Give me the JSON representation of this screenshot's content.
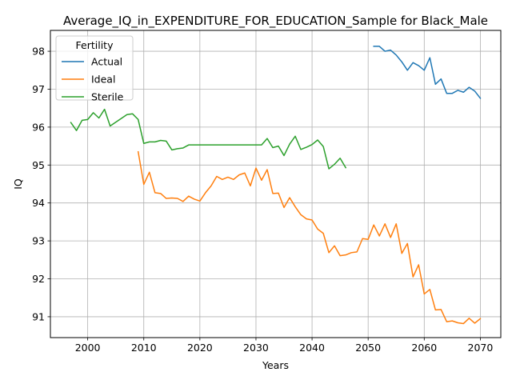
{
  "chart_data": {
    "type": "line",
    "title": "Average_IQ_in_EXPENDITURE_FOR_EDUCATION_Sample for Black_Male",
    "xlabel": "Years",
    "ylabel": "IQ",
    "xlim": [
      1993.35,
      2073.65
    ],
    "ylim": [
      90.45,
      98.55
    ],
    "xticks": [
      2000,
      2010,
      2020,
      2030,
      2040,
      2050,
      2060,
      2070
    ],
    "yticks": [
      91,
      92,
      93,
      94,
      95,
      96,
      97,
      98
    ],
    "grid": true,
    "legend": {
      "title": "Fertility",
      "placement": "top-left"
    },
    "series": [
      {
        "name": "Actual",
        "color": "#1f77b4",
        "x": [
          2051,
          2052,
          2053,
          2054,
          2055,
          2056,
          2057,
          2058,
          2059,
          2060,
          2061,
          2062,
          2063,
          2064,
          2065,
          2066,
          2067,
          2068,
          2069,
          2070
        ],
        "y": [
          98.13,
          98.13,
          98.0,
          98.03,
          97.9,
          97.72,
          97.5,
          97.7,
          97.62,
          97.5,
          97.83,
          97.13,
          97.27,
          96.89,
          96.89,
          96.97,
          96.92,
          97.05,
          96.95,
          96.76
        ]
      },
      {
        "name": "Ideal",
        "color": "#ff7f0e",
        "x": [
          2009,
          2010,
          2011,
          2012,
          2013,
          2014,
          2015,
          2016,
          2017,
          2018,
          2019,
          2020,
          2021,
          2022,
          2023,
          2024,
          2025,
          2026,
          2027,
          2028,
          2029,
          2030,
          2031,
          2032,
          2033,
          2034,
          2035,
          2036,
          2037,
          2038,
          2039,
          2040,
          2041,
          2042,
          2043,
          2044,
          2045,
          2046,
          2047,
          2048,
          2049,
          2050,
          2051,
          2052,
          2053,
          2054,
          2055,
          2056,
          2057,
          2058,
          2059,
          2060,
          2061,
          2062,
          2063,
          2064,
          2065,
          2066,
          2067,
          2068,
          2069,
          2070
        ],
        "y": [
          95.35,
          94.49,
          94.81,
          94.27,
          94.25,
          94.12,
          94.13,
          94.12,
          94.04,
          94.18,
          94.1,
          94.05,
          94.27,
          94.45,
          94.7,
          94.62,
          94.68,
          94.62,
          94.74,
          94.79,
          94.45,
          94.92,
          94.6,
          94.88,
          94.25,
          94.26,
          93.88,
          94.14,
          93.9,
          93.69,
          93.58,
          93.55,
          93.31,
          93.2,
          92.69,
          92.87,
          92.61,
          92.63,
          92.69,
          92.71,
          93.06,
          93.04,
          93.42,
          93.13,
          93.45,
          93.09,
          93.45,
          92.67,
          92.93,
          92.05,
          92.37,
          91.6,
          91.72,
          91.18,
          91.19,
          90.87,
          90.89,
          90.84,
          90.82,
          90.96,
          90.83,
          90.95
        ]
      },
      {
        "name": "Sterile",
        "color": "#2ca02c",
        "x": [
          1997,
          1998,
          1999,
          2000,
          2001,
          2002,
          2003,
          2004,
          2005,
          2006,
          2007,
          2008,
          2009,
          2010,
          2011,
          2012,
          2013,
          2014,
          2015,
          2016,
          2017,
          2018,
          2019,
          2020,
          2021,
          2022,
          2023,
          2024,
          2025,
          2026,
          2027,
          2028,
          2029,
          2030,
          2031,
          2032,
          2033,
          2034,
          2035,
          2036,
          2037,
          2038,
          2039,
          2040,
          2041,
          2042,
          2043,
          2044,
          2045,
          2046
        ],
        "y": [
          96.12,
          95.91,
          96.18,
          96.2,
          96.38,
          96.24,
          96.47,
          96.03,
          96.13,
          96.23,
          96.33,
          96.35,
          96.2,
          95.57,
          95.61,
          95.61,
          95.65,
          95.63,
          95.4,
          95.43,
          95.45,
          95.53,
          95.53,
          95.53,
          95.53,
          95.53,
          95.53,
          95.53,
          95.53,
          95.53,
          95.53,
          95.53,
          95.53,
          95.53,
          95.53,
          95.7,
          95.46,
          95.5,
          95.25,
          95.55,
          95.76,
          95.41,
          95.47,
          95.54,
          95.66,
          95.49,
          94.9,
          95.02,
          95.18,
          94.93
        ]
      }
    ]
  }
}
